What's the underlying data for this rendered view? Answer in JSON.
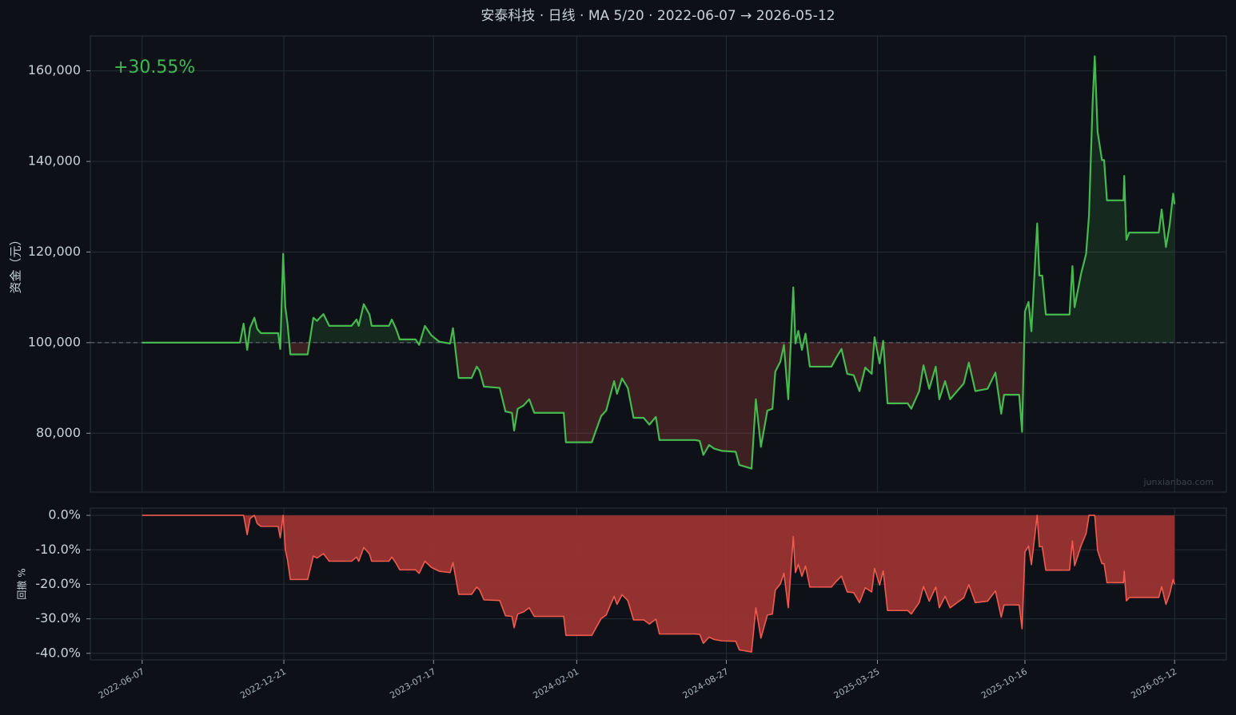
{
  "chart_data": [
    {
      "type": "line",
      "title": "安泰科技 · 日线 · MA 5/20 · 2022-06-07 → 2026-05-12",
      "ylabel": "资金（元）",
      "annotation": "+30.55%",
      "watermark": "junxianbao.com",
      "baseline": 100000,
      "up_color": "#3fb950",
      "down_color": "#e5534b",
      "grid": true,
      "xlim": [
        "2022-03-27",
        "2026-07-23"
      ],
      "xticks": [
        "2022-06-07",
        "2022-12-21",
        "2023-07-17",
        "2024-02-01",
        "2024-08-27",
        "2025-03-25",
        "2025-10-16",
        "2026-05-12"
      ],
      "ylim": [
        67000,
        167700
      ],
      "yticks": [
        {
          "value": 80000,
          "label": "80,000"
        },
        {
          "value": 100000,
          "label": "100,000"
        },
        {
          "value": 120000,
          "label": "120,000"
        },
        {
          "value": 140000,
          "label": "140,000"
        },
        {
          "value": 160000,
          "label": "160,000"
        }
      ],
      "x": [
        "2022-06-07",
        "2022-10-21",
        "2022-10-26",
        "2022-10-31",
        "2022-11-04",
        "2022-11-10",
        "2022-11-14",
        "2022-11-19",
        "2022-12-13",
        "2022-12-16",
        "2022-12-20",
        "2022-12-23",
        "2022-12-26",
        "2022-12-30",
        "2023-01-23",
        "2023-01-31",
        "2023-02-05",
        "2023-02-14",
        "2023-02-22",
        "2023-03-25",
        "2023-04-01",
        "2023-04-04",
        "2023-04-11",
        "2023-04-19",
        "2023-04-22",
        "2023-05-16",
        "2023-05-20",
        "2023-05-26",
        "2023-05-31",
        "2023-06-22",
        "2023-06-27",
        "2023-07-05",
        "2023-07-14",
        "2023-07-25",
        "2023-08-09",
        "2023-08-13",
        "2023-08-21",
        "2023-09-08",
        "2023-09-15",
        "2023-09-19",
        "2023-09-25",
        "2023-10-17",
        "2023-10-25",
        "2023-11-03",
        "2023-11-06",
        "2023-11-11",
        "2023-11-19",
        "2023-11-27",
        "2023-12-04",
        "2024-01-14",
        "2024-01-17",
        "2024-02-22",
        "2024-02-27",
        "2024-03-06",
        "2024-03-13",
        "2024-03-18",
        "2024-03-24",
        "2024-03-28",
        "2024-04-04",
        "2024-04-12",
        "2024-04-20",
        "2024-05-04",
        "2024-05-12",
        "2024-05-21",
        "2024-05-26",
        "2024-07-15",
        "2024-07-21",
        "2024-07-26",
        "2024-08-03",
        "2024-08-10",
        "2024-08-21",
        "2024-09-09",
        "2024-09-14",
        "2024-10-01",
        "2024-10-07",
        "2024-10-14",
        "2024-10-23",
        "2024-10-30",
        "2024-11-03",
        "2024-11-10",
        "2024-11-15",
        "2024-11-21",
        "2024-11-26",
        "2024-11-28",
        "2024-12-01",
        "2024-12-05",
        "2024-12-10",
        "2024-12-15",
        "2024-12-21",
        "2025-01-20",
        "2025-01-26",
        "2025-02-03",
        "2025-02-11",
        "2025-02-20",
        "2025-02-28",
        "2025-03-08",
        "2025-03-17",
        "2025-03-21",
        "2025-03-28",
        "2025-04-02",
        "2025-04-08",
        "2025-05-06",
        "2025-05-11",
        "2025-05-22",
        "2025-05-28",
        "2025-06-05",
        "2025-06-14",
        "2025-06-19",
        "2025-06-27",
        "2025-07-04",
        "2025-07-23",
        "2025-07-30",
        "2025-08-08",
        "2025-08-25",
        "2025-09-05",
        "2025-09-13",
        "2025-09-17",
        "2025-10-08",
        "2025-10-12",
        "2025-10-16",
        "2025-10-21",
        "2025-10-25",
        "2025-11-02",
        "2025-11-05",
        "2025-11-09",
        "2025-11-14",
        "2025-12-17",
        "2025-12-21",
        "2025-12-24",
        "2026-01-02",
        "2026-01-09",
        "2026-01-13",
        "2026-01-18",
        "2026-01-21",
        "2026-01-25",
        "2026-01-31",
        "2026-02-03",
        "2026-02-07",
        "2026-03-02",
        "2026-03-03",
        "2026-03-06",
        "2026-03-10",
        "2026-04-20",
        "2026-04-24",
        "2026-04-30",
        "2026-05-05",
        "2026-05-10",
        "2026-05-12"
      ],
      "series": [
        {
          "color": "#46b94f",
          "values": [
            100000,
            100000,
            104200,
            98400,
            103300,
            105500,
            103000,
            102100,
            102100,
            98600,
            119600,
            107800,
            104200,
            97400,
            97400,
            105500,
            104800,
            106300,
            103700,
            103700,
            105100,
            103700,
            108500,
            106200,
            103700,
            103700,
            105100,
            103000,
            100700,
            100700,
            99500,
            103700,
            101600,
            100200,
            99800,
            103200,
            92200,
            92200,
            94700,
            93800,
            90300,
            90000,
            84800,
            84500,
            80600,
            85400,
            86100,
            87500,
            84500,
            84500,
            78000,
            78000,
            80300,
            83800,
            85000,
            88000,
            91500,
            88700,
            92100,
            90000,
            83400,
            83400,
            81900,
            83600,
            78500,
            78500,
            78300,
            75200,
            77400,
            76600,
            76100,
            75900,
            73000,
            72200,
            87500,
            77000,
            85000,
            85400,
            93600,
            95800,
            99500,
            87500,
            105100,
            112200,
            99800,
            102600,
            98400,
            102000,
            94700,
            94700,
            96500,
            98600,
            93100,
            92800,
            89300,
            94500,
            93100,
            101200,
            95400,
            100400,
            86600,
            86600,
            85400,
            89300,
            95000,
            89800,
            94700,
            87500,
            91500,
            87500,
            91000,
            95600,
            89300,
            89800,
            93400,
            84300,
            88500,
            88500,
            80300,
            106900,
            109000,
            102500,
            126300,
            114800,
            114800,
            106200,
            106200,
            116900,
            107800,
            115200,
            119600,
            128000,
            152700,
            163200,
            146500,
            140300,
            140300,
            131400,
            131400,
            136800,
            122700,
            124300,
            124300,
            129400,
            121100,
            125800,
            132900,
            130550
          ]
        }
      ]
    },
    {
      "type": "area",
      "ylabel": "回撤 %",
      "grid": true,
      "xlim": [
        "2022-03-27",
        "2026-07-23"
      ],
      "xticks": [
        "2022-06-07",
        "2022-12-21",
        "2023-07-17",
        "2024-02-01",
        "2024-08-27",
        "2025-03-25",
        "2025-10-16",
        "2026-05-12"
      ],
      "ylim": [
        -41.9,
        2.1
      ],
      "yticks": [
        {
          "value": 0,
          "label": "0.0%"
        },
        {
          "value": -10,
          "label": "-10.0%"
        },
        {
          "value": -20,
          "label": "-20.0%"
        },
        {
          "value": -30,
          "label": "-30.0%"
        },
        {
          "value": -40,
          "label": "-40.0%"
        }
      ],
      "x": [
        "2022-06-07",
        "2022-10-21",
        "2022-10-26",
        "2022-10-31",
        "2022-11-04",
        "2022-11-10",
        "2022-11-14",
        "2022-11-19",
        "2022-12-13",
        "2022-12-16",
        "2022-12-20",
        "2022-12-23",
        "2022-12-26",
        "2022-12-30",
        "2023-01-23",
        "2023-01-31",
        "2023-02-05",
        "2023-02-14",
        "2023-02-22",
        "2023-03-25",
        "2023-04-01",
        "2023-04-04",
        "2023-04-11",
        "2023-04-19",
        "2023-04-22",
        "2023-05-16",
        "2023-05-20",
        "2023-05-26",
        "2023-05-31",
        "2023-06-22",
        "2023-06-27",
        "2023-07-05",
        "2023-07-14",
        "2023-07-25",
        "2023-08-09",
        "2023-08-13",
        "2023-08-21",
        "2023-09-08",
        "2023-09-15",
        "2023-09-19",
        "2023-09-25",
        "2023-10-17",
        "2023-10-25",
        "2023-11-03",
        "2023-11-06",
        "2023-11-11",
        "2023-11-19",
        "2023-11-27",
        "2023-12-04",
        "2024-01-14",
        "2024-01-17",
        "2024-02-22",
        "2024-02-27",
        "2024-03-06",
        "2024-03-13",
        "2024-03-18",
        "2024-03-24",
        "2024-03-28",
        "2024-04-04",
        "2024-04-12",
        "2024-04-20",
        "2024-05-04",
        "2024-05-12",
        "2024-05-21",
        "2024-05-26",
        "2024-07-15",
        "2024-07-21",
        "2024-07-26",
        "2024-08-03",
        "2024-08-10",
        "2024-08-21",
        "2024-09-09",
        "2024-09-14",
        "2024-10-01",
        "2024-10-07",
        "2024-10-14",
        "2024-10-23",
        "2024-10-30",
        "2024-11-03",
        "2024-11-10",
        "2024-11-15",
        "2024-11-21",
        "2024-11-26",
        "2024-11-28",
        "2024-12-01",
        "2024-12-05",
        "2024-12-10",
        "2024-12-15",
        "2024-12-21",
        "2025-01-20",
        "2025-01-26",
        "2025-02-03",
        "2025-02-11",
        "2025-02-20",
        "2025-02-28",
        "2025-03-08",
        "2025-03-17",
        "2025-03-21",
        "2025-03-28",
        "2025-04-02",
        "2025-04-08",
        "2025-05-06",
        "2025-05-11",
        "2025-05-22",
        "2025-05-28",
        "2025-06-05",
        "2025-06-14",
        "2025-06-19",
        "2025-06-27",
        "2025-07-04",
        "2025-07-23",
        "2025-07-30",
        "2025-08-08",
        "2025-08-25",
        "2025-09-05",
        "2025-09-13",
        "2025-09-17",
        "2025-10-08",
        "2025-10-12",
        "2025-10-16",
        "2025-10-21",
        "2025-10-25",
        "2025-11-02",
        "2025-11-05",
        "2025-11-09",
        "2025-11-14",
        "2025-12-17",
        "2025-12-21",
        "2025-12-24",
        "2026-01-02",
        "2026-01-09",
        "2026-01-13",
        "2026-01-18",
        "2026-01-21",
        "2026-01-25",
        "2026-01-31",
        "2026-02-03",
        "2026-02-07",
        "2026-03-02",
        "2026-03-03",
        "2026-03-06",
        "2026-03-10",
        "2026-04-20",
        "2026-04-24",
        "2026-04-30",
        "2026-05-05",
        "2026-05-10",
        "2026-05-12"
      ],
      "series": [
        {
          "color": "#f05a4f",
          "fill": "#9a3432",
          "values": [
            0,
            0,
            0,
            -5.6,
            -0.9,
            0,
            -2.4,
            -3.2,
            -3.2,
            -6.5,
            0,
            -9.9,
            -12.9,
            -18.6,
            -18.6,
            -11.8,
            -12.4,
            -11.1,
            -13.3,
            -13.3,
            -12.1,
            -13.3,
            -9.3,
            -11.2,
            -13.3,
            -13.3,
            -12.1,
            -13.9,
            -15.8,
            -15.8,
            -16.8,
            -13.3,
            -15.1,
            -16.2,
            -16.6,
            -13.7,
            -22.9,
            -22.9,
            -20.8,
            -21.6,
            -24.5,
            -24.7,
            -29.1,
            -29.3,
            -32.6,
            -28.6,
            -28.0,
            -26.8,
            -29.3,
            -29.3,
            -34.8,
            -34.8,
            -32.9,
            -29.9,
            -28.9,
            -26.4,
            -23.5,
            -25.8,
            -23.0,
            -24.7,
            -30.3,
            -30.3,
            -31.5,
            -30.1,
            -34.4,
            -34.4,
            -34.5,
            -37.1,
            -35.3,
            -36.0,
            -36.4,
            -36.5,
            -39.0,
            -39.6,
            -26.8,
            -35.6,
            -28.9,
            -28.6,
            -21.7,
            -19.9,
            -16.8,
            -26.8,
            -12.1,
            -6.2,
            -16.6,
            -14.2,
            -17.7,
            -14.7,
            -20.8,
            -20.8,
            -19.3,
            -17.6,
            -22.2,
            -22.4,
            -25.3,
            -21.0,
            -22.2,
            -15.4,
            -20.2,
            -16.1,
            -27.6,
            -27.6,
            -28.6,
            -25.3,
            -20.6,
            -24.9,
            -20.8,
            -26.8,
            -23.5,
            -26.8,
            -23.9,
            -20.1,
            -25.3,
            -24.9,
            -21.9,
            -29.5,
            -26.0,
            -26.0,
            -32.9,
            -10.6,
            -8.9,
            -14.3,
            0,
            -9.1,
            -9.1,
            -15.9,
            -15.9,
            -7.4,
            -14.6,
            -8.8,
            -5.3,
            0,
            0,
            0,
            -10.2,
            -14.0,
            -14.0,
            -19.5,
            -19.5,
            -16.2,
            -24.8,
            -23.8,
            -23.8,
            -20.7,
            -25.8,
            -22.9,
            -18.6,
            -20.0
          ]
        }
      ]
    }
  ]
}
